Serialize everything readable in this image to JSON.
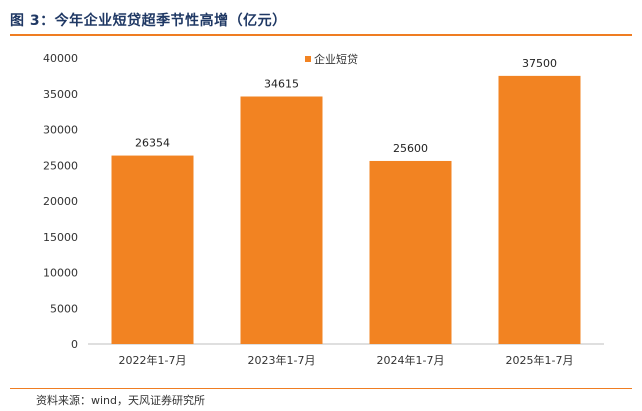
{
  "header": {
    "title": "图 3：今年企业短贷超季节性高增（亿元）"
  },
  "footer": {
    "source": "资料来源：wind，天风证券研究所"
  },
  "colors": {
    "accent": "#ef7d22",
    "bar": "#f28322",
    "title": "#1f3864"
  },
  "chart_data": {
    "type": "bar",
    "title": "",
    "xlabel": "",
    "ylabel": "",
    "categories": [
      "2022年1-7月",
      "2023年1-7月",
      "2024年1-7月",
      "2025年1-7月"
    ],
    "series": [
      {
        "name": "企业短贷",
        "values": [
          26354,
          34615,
          25600,
          37500
        ]
      }
    ],
    "ylim": [
      0,
      40000
    ],
    "yticks": [
      0,
      5000,
      10000,
      15000,
      20000,
      25000,
      30000,
      35000,
      40000
    ],
    "data_labels": [
      "26354",
      "34615",
      "25600",
      "37500"
    ],
    "grid": false,
    "legend_position": "top-center"
  }
}
